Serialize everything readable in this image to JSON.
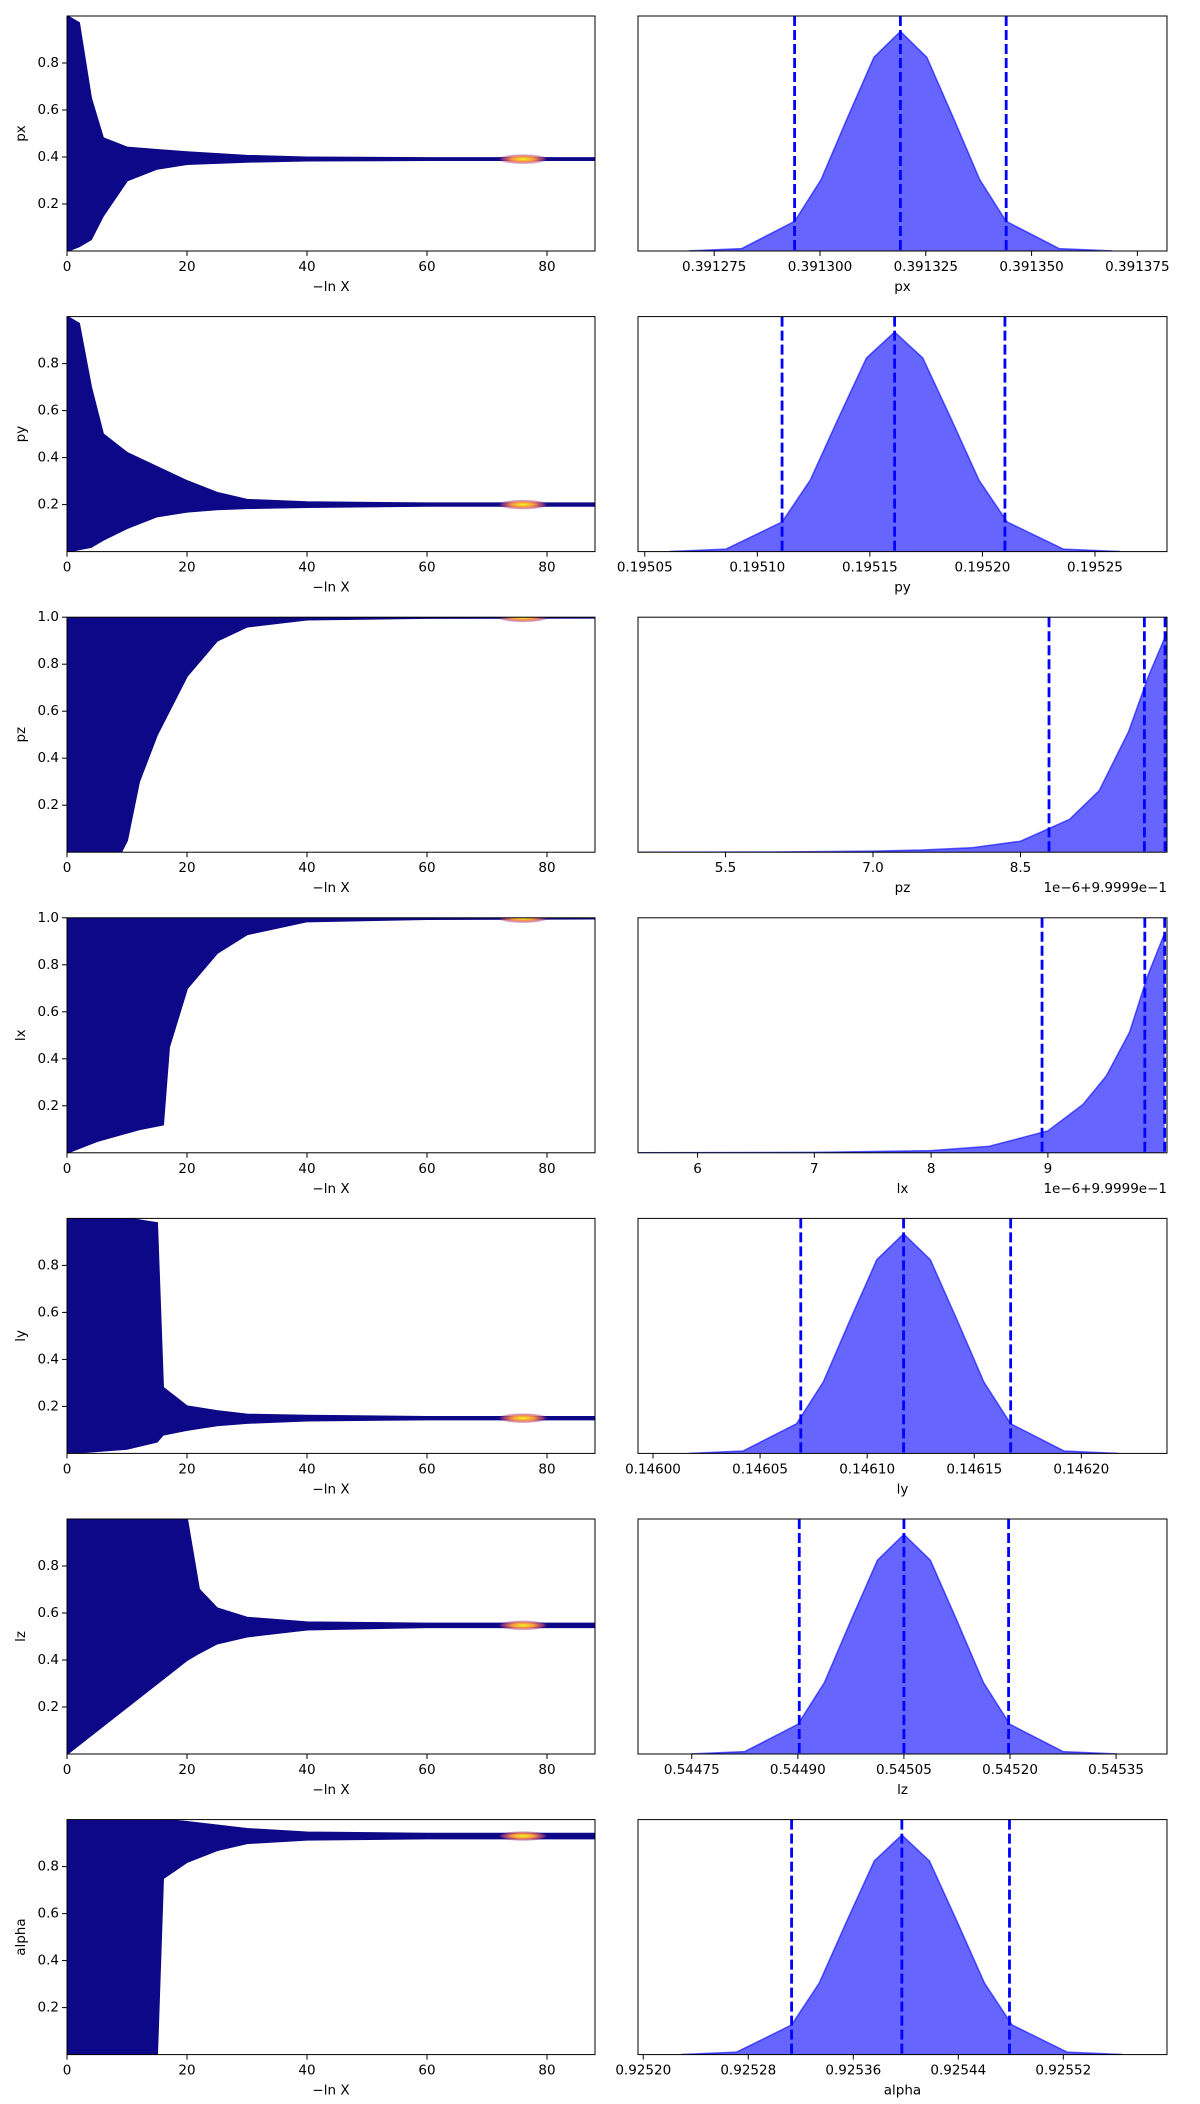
{
  "chart_data": [
    {
      "type": "trace",
      "xlabel": "−ln X",
      "ylabel": "px",
      "xlim": [
        0,
        88
      ],
      "ylim": [
        0,
        1
      ],
      "xticks": [
        0,
        20,
        40,
        60,
        80
      ],
      "yticks": [
        0.2,
        0.4,
        0.6,
        0.8
      ],
      "color": "#0d0887",
      "peak_x": 76,
      "x": [
        0,
        2,
        4,
        6,
        10,
        15,
        20,
        30,
        40,
        60,
        88
      ],
      "y_upper": [
        1.0,
        0.97,
        0.65,
        0.48,
        0.44,
        0.43,
        0.42,
        0.405,
        0.398,
        0.395,
        0.395
      ],
      "y_lower": [
        0.0,
        0.02,
        0.05,
        0.15,
        0.3,
        0.35,
        0.37,
        0.38,
        0.385,
        0.387,
        0.387
      ]
    },
    {
      "type": "density",
      "xlabel": "px",
      "xlim": [
        0.391257,
        0.391382
      ],
      "xticks": [
        0.391275,
        {
          "value": 0.3913,
          "label": "0.391300"
        },
        0.391325,
        {
          "value": 0.39135,
          "label": "0.391350"
        },
        0.391375
      ],
      "ylim": [
        0,
        1.07
      ],
      "color": "#0000ff",
      "quantiles": [
        0.391294,
        0.391319,
        0.391344
      ],
      "x": [
        0.391269,
        0.3912815,
        0.391294,
        0.39130025,
        0.3913065,
        0.39131275,
        0.391319,
        0.39132525,
        0.3913315,
        0.39133775,
        0.391344,
        0.3913565,
        0.391369
      ],
      "density": [
        0.0003,
        0.011,
        0.135,
        0.325,
        0.607,
        0.882,
        1,
        0.882,
        0.607,
        0.325,
        0.135,
        0.011,
        0.0003
      ]
    },
    {
      "type": "trace",
      "xlabel": "−ln X",
      "ylabel": "py",
      "xlim": [
        0,
        88
      ],
      "ylim": [
        0,
        1
      ],
      "xticks": [
        0,
        20,
        40,
        60,
        80
      ],
      "yticks": [
        0.2,
        0.4,
        0.6,
        0.8
      ],
      "color": "#0d0887",
      "peak_x": 76,
      "x": [
        0,
        2,
        4,
        6,
        10,
        15,
        20,
        25,
        30,
        40,
        60,
        88
      ],
      "y_upper": [
        1.0,
        0.97,
        0.7,
        0.5,
        0.42,
        0.36,
        0.3,
        0.25,
        0.22,
        0.21,
        0.205,
        0.205
      ],
      "y_lower": [
        0.0,
        0.01,
        0.02,
        0.05,
        0.1,
        0.15,
        0.17,
        0.18,
        0.185,
        0.19,
        0.195,
        0.195
      ]
    },
    {
      "type": "density",
      "xlabel": "py",
      "xlim": [
        0.195047,
        0.195282
      ],
      "xticks": [
        0.19505,
        {
          "value": 0.1951,
          "label": "0.19510"
        },
        0.19515,
        {
          "value": 0.1952,
          "label": "0.19520"
        },
        0.19525
      ],
      "ylim": [
        0,
        1.07
      ],
      "color": "#0000ff",
      "quantiles": [
        0.195111,
        0.195161,
        0.19521
      ],
      "x": [
        0.195061,
        0.195086,
        0.195111,
        0.1951235,
        0.195136,
        0.1951485,
        0.195161,
        0.1951735,
        0.195186,
        0.1951985,
        0.195211,
        0.195236,
        0.195261
      ],
      "density": [
        0.0003,
        0.011,
        0.135,
        0.325,
        0.607,
        0.882,
        1,
        0.882,
        0.607,
        0.325,
        0.135,
        0.011,
        0.0003
      ]
    },
    {
      "type": "trace",
      "xlabel": "−ln X",
      "ylabel": "pz",
      "xlim": [
        0,
        88
      ],
      "ylim": [
        0,
        1
      ],
      "xticks": [
        0,
        20,
        40,
        60,
        80
      ],
      "yticks": [
        0.2,
        0.4,
        0.6,
        0.8,
        {
          "value": 1,
          "label": "1.0"
        }
      ],
      "color": "#0d0887",
      "peak_x": 76,
      "x": [
        0,
        5,
        9,
        10,
        12,
        15,
        18,
        20,
        25,
        30,
        40,
        60,
        88
      ],
      "y_upper": [
        1,
        1,
        1,
        1,
        1,
        1,
        1,
        1,
        1,
        1,
        1,
        1,
        1
      ],
      "y_lower": [
        0,
        0,
        0,
        0.05,
        0.3,
        0.5,
        0.65,
        0.75,
        0.9,
        0.96,
        0.99,
        0.997,
        0.998
      ]
    },
    {
      "type": "density",
      "xlabel": "pz",
      "offset_label": "1e−6+9.9999e−1",
      "xlim": [
        4.61,
        9.99
      ],
      "xticks": [
        5.5,
        {
          "value": 7,
          "label": "7.0"
        },
        8.5
      ],
      "ylim": [
        0,
        1.07
      ],
      "color": "#0000ff",
      "quantiles": [
        8.79,
        9.76,
        9.97
      ],
      "x": [
        4.61,
        6,
        7,
        7.5,
        8,
        8.5,
        9,
        9.3,
        9.6,
        9.8,
        9.99
      ],
      "density": [
        0,
        0.001,
        0.005,
        0.01,
        0.02,
        0.05,
        0.15,
        0.28,
        0.55,
        0.8,
        1
      ]
    },
    {
      "type": "trace",
      "xlabel": "−ln X",
      "ylabel": "lx",
      "xlim": [
        0,
        88
      ],
      "ylim": [
        0,
        1
      ],
      "xticks": [
        0,
        20,
        40,
        60,
        80
      ],
      "yticks": [
        0.2,
        0.4,
        0.6,
        0.8,
        {
          "value": 1,
          "label": "1.0"
        }
      ],
      "color": "#0d0887",
      "peak_x": 76,
      "x": [
        0,
        5,
        12,
        16,
        17,
        20,
        25,
        30,
        40,
        60,
        88
      ],
      "y_upper": [
        1,
        1,
        1,
        1,
        1,
        1,
        1,
        1,
        1,
        1,
        1
      ],
      "y_lower": [
        0,
        0.05,
        0.1,
        0.12,
        0.45,
        0.7,
        0.85,
        0.93,
        0.985,
        0.995,
        0.997
      ]
    },
    {
      "type": "density",
      "xlabel": "lx",
      "offset_label": "1e−6+9.9999e−1",
      "xlim": [
        5.49,
        10.02
      ],
      "xticks": [
        6,
        7,
        8,
        9
      ],
      "ylim": [
        0,
        1.07
      ],
      "color": "#0000ff",
      "quantiles": [
        8.95,
        9.83,
        10
      ],
      "x": [
        5.5,
        7,
        8,
        8.5,
        9,
        9.3,
        9.5,
        9.7,
        9.85,
        10
      ],
      "density": [
        0,
        0.002,
        0.01,
        0.03,
        0.1,
        0.22,
        0.35,
        0.55,
        0.8,
        1
      ]
    },
    {
      "type": "trace",
      "xlabel": "−ln X",
      "ylabel": "ly",
      "xlim": [
        0,
        88
      ],
      "ylim": [
        0,
        1
      ],
      "xticks": [
        0,
        20,
        40,
        60,
        80
      ],
      "yticks": [
        0.2,
        0.4,
        0.6,
        0.8
      ],
      "color": "#0d0887",
      "peak_x": 76,
      "x": [
        0,
        10,
        15,
        16,
        20,
        25,
        30,
        40,
        60,
        88
      ],
      "y_upper": [
        1,
        1,
        0.98,
        0.28,
        0.2,
        0.18,
        0.165,
        0.16,
        0.155,
        0.155
      ],
      "y_lower": [
        0,
        0.02,
        0.05,
        0.08,
        0.1,
        0.12,
        0.13,
        0.14,
        0.145,
        0.145
      ]
    },
    {
      "type": "density",
      "xlabel": "ly",
      "xlim": [
        0.145993,
        0.14624
      ],
      "xticks": [
        {
          "value": 0.146,
          "label": "0.14600"
        },
        0.14605,
        {
          "value": 0.1461,
          "label": "0.14610"
        },
        0.14615,
        {
          "value": 0.1462,
          "label": "0.14620"
        }
      ],
      "ylim": [
        0,
        1.07
      ],
      "color": "#0000ff",
      "quantiles": [
        0.146069,
        0.146117,
        0.146167
      ],
      "x": [
        0.146017,
        0.146042,
        0.146067,
        0.1460795,
        0.146092,
        0.1461045,
        0.146117,
        0.1461295,
        0.146142,
        0.1461545,
        0.146167,
        0.146192,
        0.146217
      ],
      "density": [
        0.0003,
        0.011,
        0.135,
        0.325,
        0.607,
        0.882,
        1,
        0.882,
        0.607,
        0.325,
        0.135,
        0.011,
        0.0003
      ]
    },
    {
      "type": "trace",
      "xlabel": "−ln X",
      "ylabel": "lz",
      "xlim": [
        0,
        88
      ],
      "ylim": [
        0,
        1
      ],
      "xticks": [
        0,
        20,
        40,
        60,
        80
      ],
      "yticks": [
        0.2,
        0.4,
        0.6,
        0.8
      ],
      "color": "#0d0887",
      "peak_x": 76,
      "x": [
        0,
        10,
        15,
        20,
        22,
        25,
        30,
        40,
        60,
        88
      ],
      "y_upper": [
        1,
        1,
        1,
        1,
        0.7,
        0.62,
        0.58,
        0.56,
        0.555,
        0.555
      ],
      "y_lower": [
        0,
        0.2,
        0.3,
        0.4,
        0.43,
        0.47,
        0.5,
        0.53,
        0.54,
        0.54
      ]
    },
    {
      "type": "density",
      "xlabel": "lz",
      "xlim": [
        0.544674,
        0.545422
      ],
      "xticks": [
        0.54475,
        {
          "value": 0.5449,
          "label": "0.54490"
        },
        0.54505,
        {
          "value": 0.5452,
          "label": "0.54520"
        },
        0.54535
      ],
      "ylim": [
        0,
        1.07
      ],
      "color": "#0000ff",
      "quantiles": [
        0.544902,
        0.54505,
        0.545198
      ],
      "x": [
        0.54475,
        0.544825,
        0.5449,
        0.5449375,
        0.544975,
        0.5450125,
        0.54505,
        0.5450875,
        0.545125,
        0.5451625,
        0.5452,
        0.545275,
        0.54535
      ],
      "density": [
        0.0003,
        0.011,
        0.135,
        0.325,
        0.607,
        0.882,
        1,
        0.882,
        0.607,
        0.325,
        0.135,
        0.011,
        0.0003
      ]
    },
    {
      "type": "trace",
      "xlabel": "−ln X",
      "ylabel": "alpha",
      "xlim": [
        0,
        88
      ],
      "ylim": [
        0,
        1
      ],
      "xticks": [
        0,
        20,
        40,
        60,
        80
      ],
      "yticks": [
        0.2,
        0.4,
        0.6,
        0.8
      ],
      "color": "#0d0887",
      "peak_x": 76,
      "x": [
        0,
        10,
        15,
        16,
        20,
        25,
        30,
        40,
        60,
        88
      ],
      "y_upper": [
        1,
        1,
        1,
        1,
        0.99,
        0.975,
        0.96,
        0.945,
        0.94,
        0.94
      ],
      "y_lower": [
        0,
        0,
        0,
        0.75,
        0.82,
        0.87,
        0.9,
        0.915,
        0.92,
        0.92
      ]
    },
    {
      "type": "density",
      "xlabel": "alpha",
      "xlim": [
        0.925196,
        0.925599
      ],
      "xticks": [
        {
          "value": 0.9252,
          "label": "0.92520"
        },
        0.92528,
        0.92536,
        0.92544,
        0.92552
      ],
      "ylim": [
        0,
        1.07
      ],
      "color": "#0000ff",
      "quantiles": [
        0.925313,
        0.925397,
        0.925479
      ],
      "x": [
        0.925229,
        0.925271,
        0.925313,
        0.925334,
        0.925355,
        0.925376,
        0.925397,
        0.925418,
        0.925439,
        0.92546,
        0.925481,
        0.925523,
        0.925565
      ],
      "density": [
        0.0003,
        0.011,
        0.135,
        0.325,
        0.607,
        0.882,
        1,
        0.882,
        0.607,
        0.325,
        0.135,
        0.011,
        0.0003
      ]
    }
  ]
}
